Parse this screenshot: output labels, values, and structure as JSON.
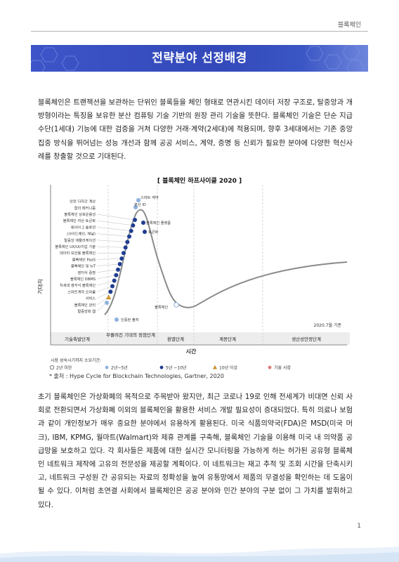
{
  "header": {
    "tag": "블록체인"
  },
  "banner": {
    "title": "전략분야 선정배경"
  },
  "intro": "블록체인은 트랜잭션을 보관하는 단위인 블록들을 체인 형태로 연관시킨 데이터 저장 구조로, 탈중앙과 개방형이라는 특징을 보유한 분산 컴퓨팅 기술 기반의 원장 관리 기술을 뜻한다. 블록체인 기술은 단순 지급수단(1세대) 기능에 대한 검증을 거쳐 다양한 거래·계약(2세대)에 적용되며, 향후 3세대에서는 기존 중앙집중 방식을 뛰어넘는 성능 개선과 함께 공공 서비스, 계약, 증명 등 신뢰가 필요한 분야에 다양한 혁신사례를 창출할 것으로 기대된다.",
  "figure": {
    "title": "[ 블록체인 하프사이클 2020 ]",
    "caption": "* 출처 : Hype Cycle for Blockchain Technologies, Gartner, 2020"
  },
  "body": "초기 블록체인은 가상화폐의 목적으로 주목받아 왔지만, 최근 코로나 19로 인해 전세계가 비대면 신뢰 사회로 전환되면서 가상화폐 이외의 블록체인을 활용한 서비스 개발 필요성이 증대되었다. 특히 의료나 보험과 같이 개인정보가 매우 중요한 분야에서 유용하게 활용된다. 미국 식품의약국(FDA)은 MSD(미국 머크), IBM, KPMG, 월마트(Walmart)와 제휴 관계를 구축해, 블록체인 기술을 이용해 미국 내 의약품 공급망을 보호하고 있다. 각 회사들은 제품에 대한 실시간 모니터링을 가능하게 하는 허가된 공유형 블록체인 네트워크 제작에 고유의 전문성을 제공할 계획이다. 이 네트워크는 재고 추적 및 조회 시간을 단축시키고, 네트워크 구성원 간 공유되는 자료의 정확성을 높여 유통망에서 제품의 무결성을 확인하는 데 도움이 될 수 있다. 이처럼 초연결 사회에서 블록체인은 공공 분야와 민간 분야의 구분 없이 그 가치를 발휘하고 있다.",
  "page_number": "1",
  "chart_data": {
    "type": "scatter",
    "title": "블록체인 하프사이클 2020",
    "ylabel": "기대치",
    "xlabel": "시간",
    "date_note": "2020.7월 기준",
    "phases": [
      "기술촉발단계",
      "부풀려진 기대의 정점단계",
      "환멸단계",
      "계몽단계",
      "생산성안정단계"
    ],
    "legend_title": "시장 성숙시기까지 소요기간:",
    "legend": [
      {
        "label": "2년 미만",
        "marker": "hollow",
        "color": "#777777"
      },
      {
        "label": "2년~5년",
        "marker": "circle",
        "color": "#8fb2df"
      },
      {
        "label": "5년 ~10년",
        "marker": "circle",
        "color": "#1f3d8f"
      },
      {
        "label": "10년 이상",
        "marker": "triangle",
        "color": "#e39b2d"
      },
      {
        "label": "기술 사장",
        "marker": "circle",
        "color": "#e37a7a"
      }
    ],
    "rising_labels": [
      "탈중앙화 웹",
      "블록체인 관리",
      "서비스",
      "스마트계약 오라클",
      "차세대 영지식 블록체인",
      "블록체인 DBMS",
      "영지식 증명",
      "블록체인 및 IoT",
      "블록체인 PaaS",
      "데이터 보안용 블록체인",
      "블록체인 UX/UI/지갑 기술",
      "탈중앙 애플리케이션",
      "(사이드체인, 채널)",
      "레이어 2 솔루션",
      "블록체인 자산 토큰화",
      "블록체인 상호운용성",
      "합의 메커니즘",
      "안전 다자간 계산"
    ],
    "rising_label_series": [
      {
        "label": "탈중앙화 웹",
        "marker": "circle",
        "color": "#8fb2df"
      },
      {
        "label": "블록체인 관리 서비스",
        "marker": "triangle",
        "color": "#e39b2d"
      },
      {
        "label": "스마트계약 오라클",
        "marker": "circle",
        "color": "#1f3d8f"
      },
      {
        "label": "차세대 영지식 블록체인",
        "marker": "circle",
        "color": "#1f3d8f"
      },
      {
        "label": "블록체인 DBMS",
        "marker": "circle",
        "color": "#1f3d8f"
      },
      {
        "label": "영지식 증명",
        "marker": "circle",
        "color": "#1f3d8f"
      },
      {
        "label": "블록체인 및 IoT",
        "marker": "circle",
        "color": "#1f3d8f"
      },
      {
        "label": "블록체인 PaaS",
        "marker": "circle",
        "color": "#1f3d8f"
      },
      {
        "label": "데이터 보안용 블록체인",
        "marker": "circle",
        "color": "#1f3d8f"
      },
      {
        "label": "블록체인 UX/UI/지갑 기술",
        "marker": "circle",
        "color": "#1f3d8f"
      },
      {
        "label": "탈중앙 애플리케이션",
        "marker": "circle",
        "color": "#1f3d8f"
      },
      {
        "label": "레이어 2 솔루션 (사이드체인, 채널)",
        "marker": "circle",
        "color": "#1f3d8f"
      },
      {
        "label": "블록체인 자산 토큰화",
        "marker": "circle",
        "color": "#1f3d8f"
      },
      {
        "label": "블록체인 상호운용성",
        "marker": "circle",
        "color": "#1f3d8f"
      },
      {
        "label": "합의 메커니즘",
        "marker": "circle",
        "color": "#1f3d8f"
      },
      {
        "label": "안전 다자간 계산",
        "marker": "circle",
        "color": "#1f3d8f"
      }
    ],
    "other_points": [
      {
        "label": "인증된 출처",
        "marker": "circle",
        "color": "#8fb2df"
      },
      {
        "label": "스마트 계약",
        "marker": "circle",
        "color": "#8fb2df"
      },
      {
        "label": "분산 ID",
        "marker": "circle",
        "color": "#8fb2df"
      },
      {
        "label": "블록체인 플랫폼",
        "marker": "circle",
        "color": "#1f3d8f"
      },
      {
        "label": "토큰화",
        "marker": "circle",
        "color": "#1f3d8f"
      },
      {
        "label": "블록체인",
        "marker": "hollow",
        "color": "#8fb2df"
      }
    ]
  },
  "colors": {
    "banner": "#3349ba",
    "accent_navy": "#1f3d8f",
    "accent_light": "#8fb2df"
  }
}
